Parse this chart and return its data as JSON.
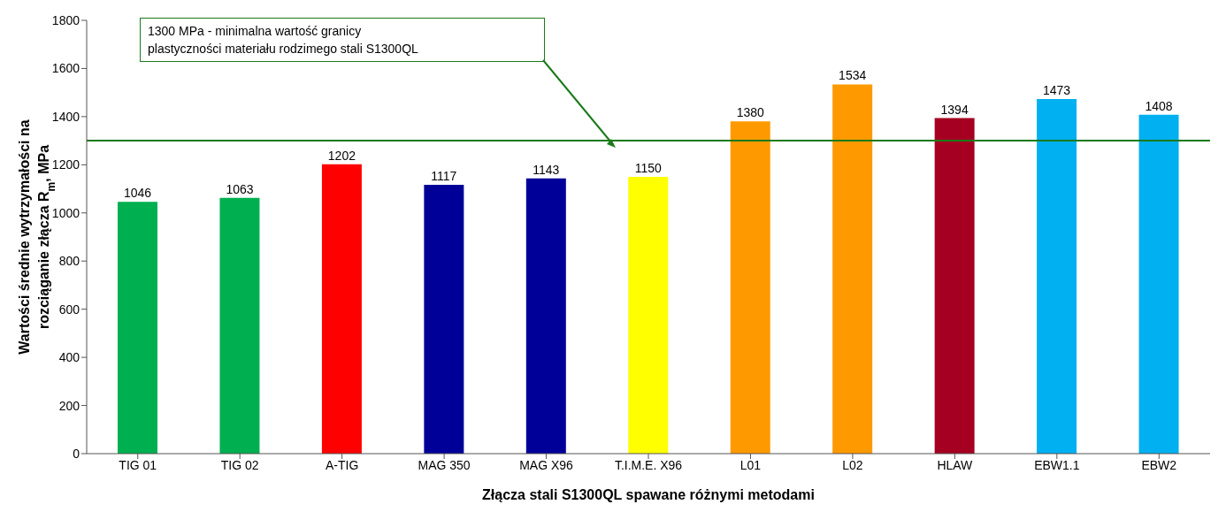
{
  "chart_data": {
    "type": "bar",
    "xlabel": "Złącza stali S1300QL spawane różnymi metodami",
    "ylabel": "Wartości średnie wytrzymałości na\nrozciąganie złącza R$_{m}$, MPa",
    "categories": [
      "TIG 01",
      "TIG 02",
      "A-TIG",
      "MAG 350",
      "MAG X96",
      "T.I.M.E. X96",
      "L01",
      "L02",
      "HLAW",
      "EBW1.1",
      "EBW2"
    ],
    "values": [
      1046,
      1063,
      1202,
      1117,
      1143,
      1150,
      1380,
      1534,
      1394,
      1473,
      1408
    ],
    "colors": [
      "#00b050",
      "#00b050",
      "#ff0000",
      "#000099",
      "#000099",
      "#ffff00",
      "#ff9900",
      "#ff9900",
      "#a50021",
      "#00b0f0",
      "#00b0f0"
    ],
    "ylim": [
      0,
      1800
    ],
    "yticks": [
      0,
      200,
      400,
      600,
      800,
      1000,
      1200,
      1400,
      1600,
      1800
    ],
    "ref_lines": [
      {
        "axis": "y",
        "value": 1300,
        "color": "#1a7a1a"
      }
    ],
    "annotations": [
      "1300 MPa - minimalna wartość granicy\nplastyczności materiału rodzimego stali S1300QL"
    ],
    "data_labels": true,
    "grid": false
  }
}
